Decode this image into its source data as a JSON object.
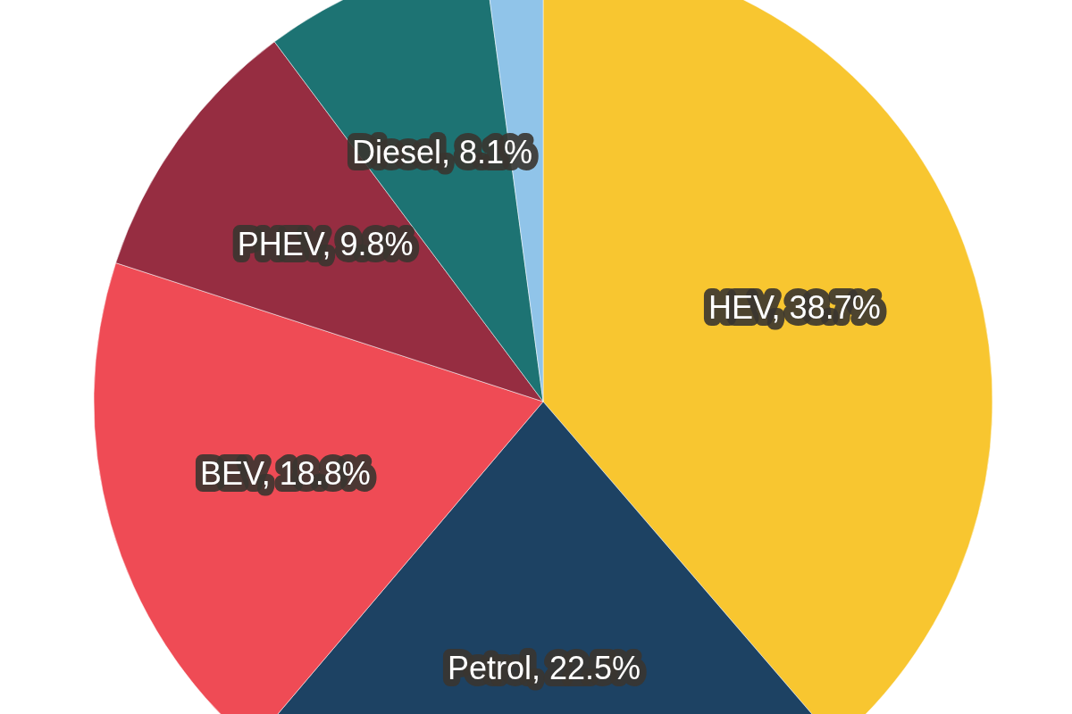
{
  "chart_data": {
    "type": "pie",
    "categories": [
      "HEV",
      "Petrol",
      "BEV",
      "PHEV",
      "Diesel",
      null
    ],
    "values": [
      38.7,
      22.5,
      18.8,
      9.8,
      8.1,
      2.1
    ],
    "colors": [
      "#f8c630",
      "#1d4263",
      "#ef4b55",
      "#962d41",
      "#1d7373",
      "#90c4e9"
    ],
    "value_labels": [
      "38.7%",
      "22.5%",
      "18.8%",
      "9.8%",
      "8.1%",
      null
    ]
  }
}
